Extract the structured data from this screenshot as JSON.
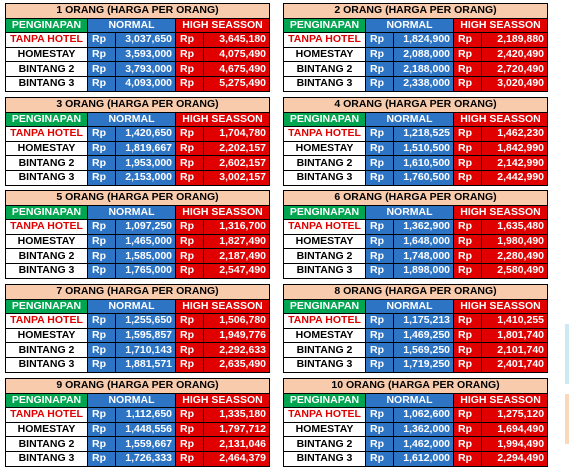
{
  "header_labels": {
    "penginapan": "PENGINAPAN",
    "normal": "NORMAL",
    "high": "HIGH SEASSON",
    "currency": "Rp"
  },
  "tables": [
    {
      "title": "1 ORANG (HARGA PER ORANG)",
      "rows": [
        {
          "name": "TANPA HOTEL",
          "normal": "3,037,650",
          "high": "3,645,180"
        },
        {
          "name": "HOMESTAY",
          "normal": "3,593,000",
          "high": "4,075,490"
        },
        {
          "name": "BINTANG 2",
          "normal": "3,793,000",
          "high": "4,675,490"
        },
        {
          "name": "BINTANG 3",
          "normal": "4,093,000",
          "high": "5,275,490"
        }
      ]
    },
    {
      "title": "2 ORANG (HARGA PER ORANG)",
      "rows": [
        {
          "name": "TANPA HOTEL",
          "normal": "1,824,900",
          "high": "2,189,880"
        },
        {
          "name": "HOMESTAY",
          "normal": "2,088,000",
          "high": "2,420,490"
        },
        {
          "name": "BINTANG 2",
          "normal": "2,188,000",
          "high": "2,720,490"
        },
        {
          "name": "BINTANG 3",
          "normal": "2,338,000",
          "high": "3,020,490"
        }
      ]
    },
    {
      "title": "3 ORANG (HARGA PER ORANG)",
      "rows": [
        {
          "name": "TANPA HOTEL",
          "normal": "1,420,650",
          "high": "1,704,780"
        },
        {
          "name": "HOMESTAY",
          "normal": "1,819,667",
          "high": "2,202,157"
        },
        {
          "name": "BINTANG 2",
          "normal": "1,953,000",
          "high": "2,602,157"
        },
        {
          "name": "BINTANG 3",
          "normal": "2,153,000",
          "high": "3,002,157"
        }
      ]
    },
    {
      "title": "4 ORANG (HARGA PER ORANG)",
      "rows": [
        {
          "name": "TANPA HOTEL",
          "normal": "1,218,525",
          "high": "1,462,230"
        },
        {
          "name": "HOMESTAY",
          "normal": "1,510,500",
          "high": "1,842,990"
        },
        {
          "name": "BINTANG 2",
          "normal": "1,610,500",
          "high": "2,142,990"
        },
        {
          "name": "BINTANG 3",
          "normal": "1,760,500",
          "high": "2,442,990"
        }
      ]
    },
    {
      "title": "5 ORANG (HARGA PER ORANG)",
      "rows": [
        {
          "name": "TANPA HOTEL",
          "normal": "1,097,250",
          "high": "1,316,700"
        },
        {
          "name": "HOMESTAY",
          "normal": "1,465,000",
          "high": "1,827,490"
        },
        {
          "name": "BINTANG 2",
          "normal": "1,585,000",
          "high": "2,187,490"
        },
        {
          "name": "BINTANG 3",
          "normal": "1,765,000",
          "high": "2,547,490"
        }
      ]
    },
    {
      "title": "6 ORANG (HARGA PER ORANG)",
      "rows": [
        {
          "name": "TANPA HOTEL",
          "normal": "1,362,900",
          "high": "1,635,480"
        },
        {
          "name": "HOMESTAY",
          "normal": "1,648,000",
          "high": "1,980,490"
        },
        {
          "name": "BINTANG 2",
          "normal": "1,748,000",
          "high": "2,280,490"
        },
        {
          "name": "BINTANG 3",
          "normal": "1,898,000",
          "high": "2,580,490"
        }
      ]
    },
    {
      "title": "7 ORANG (HARGA PER ORANG)",
      "rows": [
        {
          "name": "TANPA HOTEL",
          "normal": "1,255,650",
          "high": "1,506,780"
        },
        {
          "name": "HOMESTAY",
          "normal": "1,595,857",
          "high": "1,949,776"
        },
        {
          "name": "BINTANG 2",
          "normal": "1,710,143",
          "high": "2,292,633"
        },
        {
          "name": "BINTANG 3",
          "normal": "1,881,571",
          "high": "2,635,490"
        }
      ]
    },
    {
      "title": "8 ORANG (HARGA PER ORANG)",
      "rows": [
        {
          "name": "TANPA HOTEL",
          "normal": "1,175,213",
          "high": "1,410,255"
        },
        {
          "name": "HOMESTAY",
          "normal": "1,469,250",
          "high": "1,801,740"
        },
        {
          "name": "BINTANG 2",
          "normal": "1,569,250",
          "high": "2,101,740"
        },
        {
          "name": "BINTANG 3",
          "normal": "1,719,250",
          "high": "2,401,740"
        }
      ]
    },
    {
      "title": "9 ORANG (HARGA PER ORANG)",
      "rows": [
        {
          "name": "TANPA HOTEL",
          "normal": "1,112,650",
          "high": "1,335,180"
        },
        {
          "name": "HOMESTAY",
          "normal": "1,448,556",
          "high": "1,797,712"
        },
        {
          "name": "BINTANG 2",
          "normal": "1,559,667",
          "high": "2,131,046"
        },
        {
          "name": "BINTANG 3",
          "normal": "1,726,333",
          "high": "2,464,379"
        }
      ]
    },
    {
      "title": "10 ORANG (HARGA PER ORANG)",
      "rows": [
        {
          "name": "TANPA HOTEL",
          "normal": "1,062,600",
          "high": "1,275,120"
        },
        {
          "name": "HOMESTAY",
          "normal": "1,362,000",
          "high": "1,694,490"
        },
        {
          "name": "BINTANG 2",
          "normal": "1,462,000",
          "high": "1,994,490"
        },
        {
          "name": "BINTANG 3",
          "normal": "1,612,000",
          "high": "2,294,490"
        }
      ]
    }
  ],
  "colors": {
    "title_bg": "#f8cbad",
    "penginapan_bg": "#00a550",
    "normal_bg": "#2d74c4",
    "high_bg": "#e00000",
    "tanpa_hotel_text": "#e00000"
  }
}
